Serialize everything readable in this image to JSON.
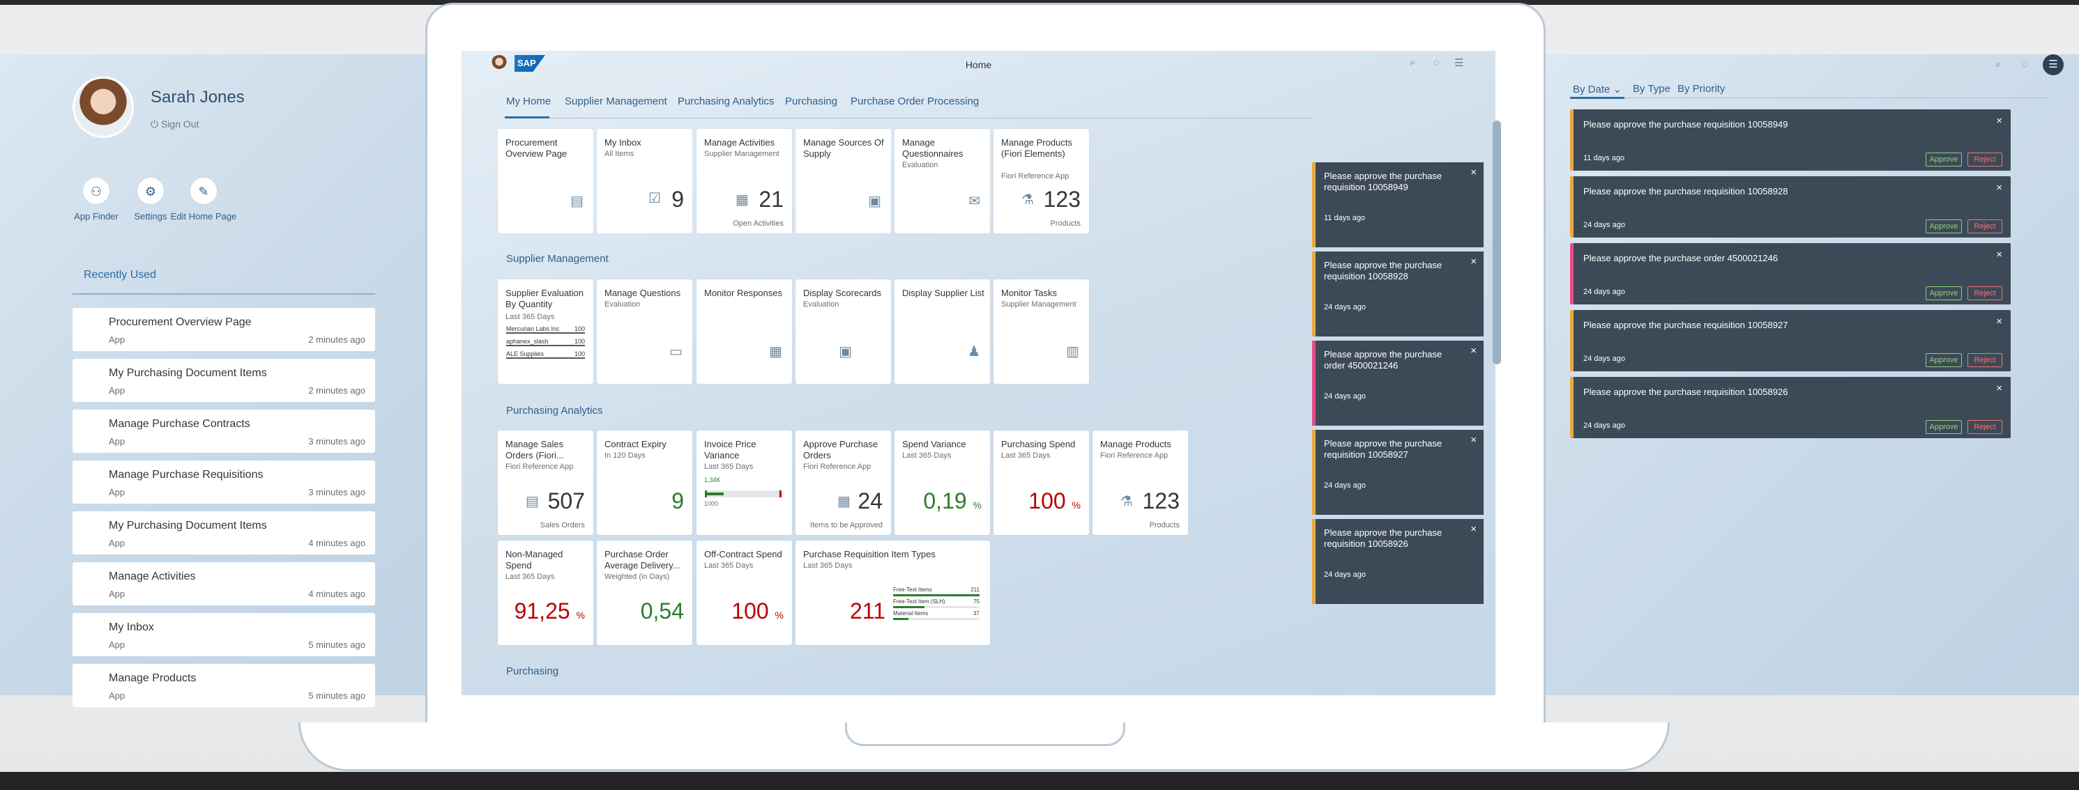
{
  "user": {
    "name": "Sarah Jones",
    "signout": "Sign Out"
  },
  "quick_actions": [
    {
      "label": "App Finder"
    },
    {
      "label": "Settings"
    },
    {
      "label": "Edit Home Page"
    }
  ],
  "recent": {
    "heading": "Recently Used",
    "items": [
      {
        "title": "Procurement Overview Page",
        "type": "App",
        "time": "2 minutes ago"
      },
      {
        "title": "My Purchasing Document Items",
        "type": "App",
        "time": "2 minutes ago"
      },
      {
        "title": "Manage Purchase Contracts",
        "type": "App",
        "time": "3 minutes ago"
      },
      {
        "title": "Manage Purchase Requisitions",
        "type": "App",
        "time": "3 minutes ago"
      },
      {
        "title": "My Purchasing Document Items",
        "type": "App",
        "time": "4 minutes ago"
      },
      {
        "title": "Manage Activities",
        "type": "App",
        "time": "4 minutes ago"
      },
      {
        "title": "My Inbox",
        "type": "App",
        "time": "5 minutes ago"
      },
      {
        "title": "Manage Products",
        "type": "App",
        "time": "5 minutes ago"
      }
    ]
  },
  "right_pane": {
    "tabs": [
      "By Date",
      "By Type",
      "By Priority"
    ],
    "notifications": [
      {
        "text": "Please approve the purchase requisition 10058949",
        "age": "11 days ago",
        "approve": "Approve",
        "reject": "Reject"
      },
      {
        "text": "Please approve the purchase requisition 10058928",
        "age": "24 days ago",
        "approve": "Approve",
        "reject": "Reject"
      },
      {
        "text": "Please approve the purchase order 4500021246",
        "age": "24 days ago",
        "approve": "Approve",
        "reject": "Reject"
      },
      {
        "text": "Please approve the purchase requisition 10058927",
        "age": "24 days ago",
        "approve": "Approve",
        "reject": "Reject"
      },
      {
        "text": "Please approve the purchase requisition 10058926",
        "age": "24 days ago",
        "approve": "Approve",
        "reject": "Reject"
      }
    ]
  },
  "screen": {
    "title": "Home",
    "logo": "SAP",
    "tabs": [
      "My Home",
      "Supplier Management",
      "Purchasing Analytics",
      "Purchasing",
      "Purchase Order Processing"
    ],
    "sections": {
      "supplier": "Supplier Management",
      "analytics": "Purchasing Analytics",
      "purchasing": "Purchasing"
    },
    "myhome_tiles": [
      {
        "title": "Procurement Overview Page",
        "sub": "",
        "kpi": "",
        "foot": ""
      },
      {
        "title": "My Inbox",
        "sub": "All Items",
        "kpi": "9",
        "foot": ""
      },
      {
        "title": "Manage Activities",
        "sub": "Supplier Management",
        "kpi": "21",
        "foot": "Open Activities"
      },
      {
        "title": "Manage Sources Of Supply",
        "sub": "",
        "kpi": "",
        "foot": ""
      },
      {
        "title": "Manage Questionnaires",
        "sub": "Evaluation",
        "kpi": "",
        "foot": ""
      },
      {
        "title": "Manage Products (Fiori Elements)",
        "sub": "Fiori Reference App",
        "kpi": "123",
        "foot": "Products"
      }
    ],
    "supplier_tiles": [
      {
        "title": "Supplier Evaluation By Quantity",
        "sub": "Last 365 Days"
      },
      {
        "title": "Manage Questions",
        "sub": "Evaluation"
      },
      {
        "title": "Monitor Responses",
        "sub": ""
      },
      {
        "title": "Display Scorecards",
        "sub": "Evaluation"
      },
      {
        "title": "Display Supplier List",
        "sub": ""
      },
      {
        "title": "Monitor Tasks",
        "sub": "Supplier Management"
      }
    ],
    "supplier_eval_rows": [
      {
        "label": "Mercurian Labs Inc",
        "value": "100"
      },
      {
        "label": "aphanex_slash",
        "value": "100"
      },
      {
        "label": "ALE Supplies",
        "value": "100"
      }
    ],
    "analytics_tiles": [
      {
        "title": "Manage Sales Orders (Fiori...",
        "sub": "Fiori Reference App",
        "kpi": "507",
        "unit": "",
        "foot": "Sales Orders"
      },
      {
        "title": "Contract Expiry",
        "sub": "In 120 Days",
        "kpi": "9",
        "unit": "",
        "foot": ""
      },
      {
        "title": "Invoice Price Variance",
        "sub": "Last 365 Days",
        "kpi": "",
        "unit": "",
        "foot": ""
      },
      {
        "title": "Approve Purchase Orders",
        "sub": "Fiori Reference App",
        "kpi": "24",
        "unit": "",
        "foot": "Items to be Approved"
      },
      {
        "title": "Spend Variance",
        "sub": "Last 365 Days",
        "kpi": "0,19",
        "unit": "%",
        "foot": ""
      },
      {
        "title": "Purchasing Spend",
        "sub": "Last 365 Days",
        "kpi": "100",
        "unit": "%",
        "foot": ""
      },
      {
        "title": "Manage Products",
        "sub": "Fiori Reference App",
        "kpi": "123",
        "unit": "",
        "foot": "Products"
      }
    ],
    "invoice_variance": {
      "top": "1,34K",
      "bottom": "1000"
    },
    "analytics_tiles2": [
      {
        "title": "Non-Managed Spend",
        "sub": "Last 365 Days",
        "kpi": "91,25",
        "unit": "%"
      },
      {
        "title": "Purchase Order Average Delivery...",
        "sub": "Weighted (in Days)",
        "kpi": "0,54",
        "unit": ""
      },
      {
        "title": "Off-Contract Spend",
        "sub": "Last 365 Days",
        "kpi": "100",
        "unit": "%"
      },
      {
        "title": "Purchase Requisition Item Types",
        "sub": "Last 365 Days",
        "kpi": "211",
        "unit": ""
      }
    ],
    "pr_item_types": [
      {
        "label": "Free-Text Items",
        "value": "211",
        "fill": 1.0,
        "color": "#2b7d2b"
      },
      {
        "label": "Free-Text Item (SLH)",
        "value": "75",
        "fill": 0.36,
        "color": "#2b7d2b"
      },
      {
        "label": "Material Items",
        "value": "37",
        "fill": 0.18,
        "color": "#2b7d2b"
      }
    ],
    "notifications": [
      {
        "text": "Please approve the purchase requisition 10058949",
        "age": "11 days ago"
      },
      {
        "text": "Please approve the purchase requisition 10058928",
        "age": "24 days ago"
      },
      {
        "text": "Please approve the purchase order 4500021246",
        "age": "24 days ago"
      },
      {
        "text": "Please approve the purchase requisition 10058927",
        "age": "24 days ago"
      },
      {
        "text": "Please approve the purchase requisition 10058926",
        "age": "24 days ago"
      }
    ]
  }
}
